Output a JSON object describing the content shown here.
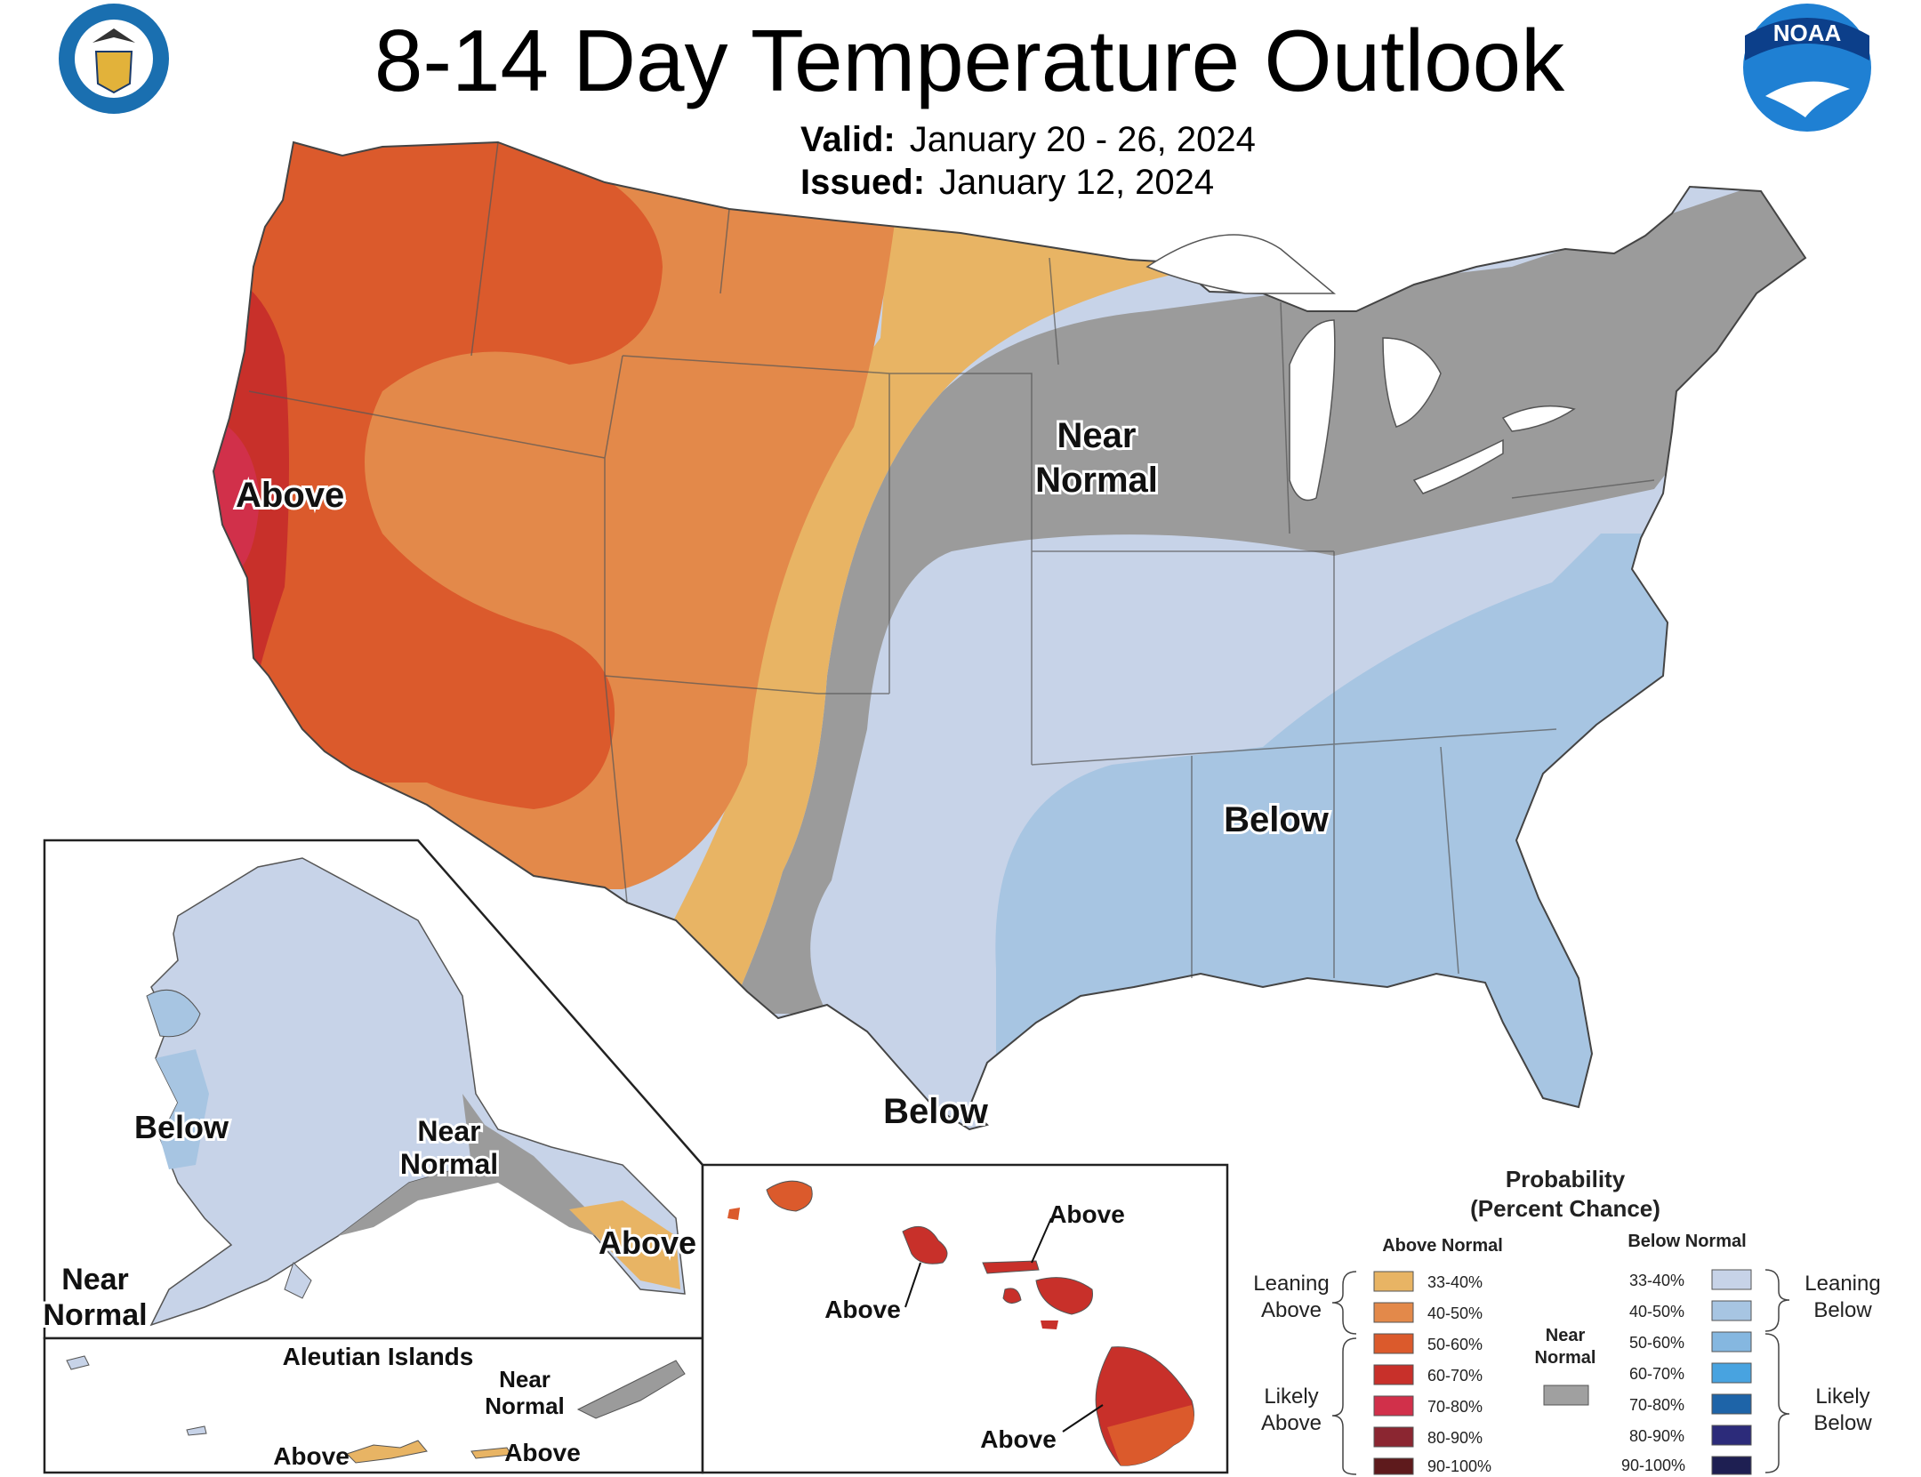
{
  "header": {
    "title": "8-14 Day Temperature Outlook",
    "valid_label": "Valid:",
    "valid_value": "January 20 - 26, 2024",
    "issued_label": "Issued:",
    "issued_value": "January 12, 2024"
  },
  "logos": {
    "commerce_seal_text": "DEPARTMENT OF COMMERCE · UNITED STATES OF AMERICA",
    "noaa_text": "NOAA"
  },
  "map_labels": {
    "conus_above": "Above",
    "conus_near_1": "Near",
    "conus_near_2": "Normal",
    "conus_below": "Below",
    "conus_below_texas": "Below",
    "ak_below": "Below",
    "ak_near_1": "Near",
    "ak_near_2": "Normal",
    "ak_above": "Above",
    "ak_sw_near_1": "Near",
    "ak_sw_near_2": "Normal",
    "aleutian_title": "Aleutian Islands",
    "aleutian_near_1": "Near",
    "aleutian_near_2": "Normal",
    "aleutian_above_1": "Above",
    "aleutian_above_2": "Above",
    "hi_above_1": "Above",
    "hi_above_2": "Above",
    "hi_above_3": "Above"
  },
  "legend": {
    "title_1": "Probability",
    "title_2": "(Percent Chance)",
    "above_header": "Above Normal",
    "below_header": "Below Normal",
    "near_1": "Near",
    "near_2": "Normal",
    "near_color": "#a0a0a0",
    "leaning_above_1": "Leaning",
    "leaning_above_2": "Above",
    "likely_above_1": "Likely",
    "likely_above_2": "Above",
    "leaning_below_1": "Leaning",
    "leaning_below_2": "Below",
    "likely_below_1": "Likely",
    "likely_below_2": "Below",
    "ranges": [
      "33-40%",
      "40-50%",
      "50-60%",
      "60-70%",
      "70-80%",
      "80-90%",
      "90-100%"
    ],
    "above_colors": [
      "#e8b464",
      "#e3894a",
      "#db5a2c",
      "#c8302a",
      "#d1304a",
      "#8b2631",
      "#5e1a1c"
    ],
    "below_colors": [
      "#c7d3e8",
      "#a7c5e2",
      "#85b7e0",
      "#48a3e0",
      "#1e64a8",
      "#2c2b7a",
      "#1e1f52"
    ]
  },
  "categories": {
    "above_33_40": "#e8b464",
    "above_40_50": "#e3894a",
    "above_50_60": "#db5a2c",
    "above_60_70": "#c8302a",
    "above_70_80": "#d1304a",
    "near_normal": "#9b9b9b",
    "below_33_40": "#c7d3e8",
    "below_40_50": "#a7c5e2"
  }
}
